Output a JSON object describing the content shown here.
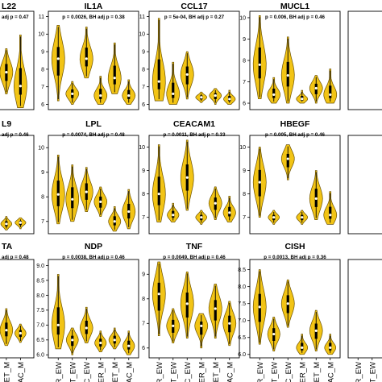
{
  "colors": {
    "violin_fill": "#f2c415",
    "violin_stroke": "#6b5100",
    "box": "#000000",
    "median": "#ffffff",
    "frame": "#000000"
  },
  "x_categories": [
    "BER_EW",
    "BET_EW",
    "AC_EW",
    "BER_M",
    "BET_M",
    "AC_M"
  ],
  "x_tick_labels_visible": [
    "BER_M",
    "BET_M",
    "AC_M",
    "BER_EW",
    "BET_EW",
    "AC_EW",
    "BER_M",
    "BET_M",
    "AC_M",
    "BER_EW",
    "BET_EW",
    "AC_EW",
    "BER_M",
    "BET_M",
    "AC_M",
    "BER_EW",
    "BET_EW",
    "AC_EW",
    "BER_M",
    "BET_M",
    "AC_M",
    "BER_EW",
    "BET_EW",
    "AC_EW",
    "BER_M",
    "BET_M",
    "AC_M"
  ],
  "chart_data": [
    {
      "type": "violin",
      "title": "L22",
      "subtitle": "adj p = 0.47",
      "row": 0,
      "col": 0,
      "yticks": [],
      "ylim": [
        6,
        11
      ],
      "medians": [
        6.8,
        7.9,
        7.2
      ],
      "ranges": [
        [
          6.2,
          8.5
        ],
        [
          6.8,
          9.1
        ],
        [
          6.1,
          9.8
        ]
      ]
    },
    {
      "type": "violin",
      "title": "IL1A",
      "subtitle": "p = 0.0026, BH adj p = 0.38",
      "row": 0,
      "col": 1,
      "yticks": [
        6,
        7,
        8,
        9,
        10,
        11
      ],
      "ylim": [
        5.7,
        11.3
      ],
      "medians": [
        8.6,
        6.6,
        8.6,
        6.5,
        7.5,
        6.5
      ],
      "ranges": [
        [
          6.2,
          10.5
        ],
        [
          6.0,
          7.3
        ],
        [
          7.5,
          10.4
        ],
        [
          6.0,
          7.6
        ],
        [
          6.6,
          9.5
        ],
        [
          6.0,
          7.4
        ]
      ]
    },
    {
      "type": "violin",
      "title": "CCL17",
      "subtitle": "p = 5e-04, BH adj p = 0.27",
      "row": 0,
      "col": 2,
      "yticks": [
        6,
        7,
        8,
        9,
        10,
        11
      ],
      "ylim": [
        5.7,
        11.3
      ],
      "medians": [
        7.3,
        6.6,
        7.7,
        6.4,
        6.5,
        6.3
      ],
      "ranges": [
        [
          6.2,
          10.9
        ],
        [
          6.0,
          8.4
        ],
        [
          6.3,
          9.0
        ],
        [
          6.1,
          6.7
        ],
        [
          6.0,
          6.9
        ],
        [
          6.0,
          6.8
        ]
      ]
    },
    {
      "type": "violin",
      "title": "MUCL1",
      "subtitle": "p = 0.006, BH adj p = 0.46",
      "row": 0,
      "col": 3,
      "yticks": [
        6,
        7,
        8,
        9,
        10
      ],
      "ylim": [
        5.7,
        10.3
      ],
      "medians": [
        7.8,
        6.4,
        7.3,
        6.2,
        6.7,
        6.4
      ],
      "ranges": [
        [
          6.2,
          10.1
        ],
        [
          6.0,
          7.2
        ],
        [
          6.0,
          9.1
        ],
        [
          6.0,
          6.6
        ],
        [
          6.0,
          7.3
        ],
        [
          6.0,
          7.6
        ]
      ]
    },
    {
      "type": "violin",
      "title": "",
      "subtitle": "",
      "row": 0,
      "col": 4,
      "yticks": [],
      "ylim": [
        6,
        11
      ],
      "medians": [],
      "ranges": []
    },
    {
      "type": "violin",
      "title": "L9",
      "subtitle": "adj p = 0.46",
      "row": 1,
      "col": 0,
      "yticks": [],
      "ylim": [
        6.5,
        10.5
      ],
      "medians": [
        6.9,
        6.9,
        6.95
      ],
      "ranges": [
        [
          6.7,
          7.1
        ],
        [
          6.65,
          7.2
        ],
        [
          6.7,
          7.15
        ]
      ]
    },
    {
      "type": "violin",
      "title": "LPL",
      "subtitle": "p = 0.0074, BH adj p = 0.48",
      "row": 1,
      "col": 1,
      "yticks": [
        7,
        8,
        9,
        10
      ],
      "ylim": [
        6.5,
        10.5
      ],
      "medians": [
        8.1,
        7.9,
        8.2,
        7.8,
        7.0,
        7.4
      ],
      "ranges": [
        [
          6.9,
          9.7
        ],
        [
          7.0,
          9.3
        ],
        [
          7.4,
          9.2
        ],
        [
          7.2,
          8.4
        ],
        [
          6.6,
          7.6
        ],
        [
          6.7,
          8.3
        ]
      ]
    },
    {
      "type": "violin",
      "title": "CEACAM1",
      "subtitle": "p = 0.0011, BH adj p = 0.33",
      "row": 1,
      "col": 2,
      "yticks": [
        7,
        8,
        9,
        10
      ],
      "ylim": [
        6.3,
        10.5
      ],
      "medians": [
        8.0,
        7.1,
        8.7,
        7.0,
        7.6,
        7.2
      ],
      "ranges": [
        [
          6.8,
          10.1
        ],
        [
          6.8,
          7.6
        ],
        [
          7.3,
          10.3
        ],
        [
          6.7,
          7.3
        ],
        [
          6.9,
          8.3
        ],
        [
          6.8,
          7.9
        ]
      ]
    },
    {
      "type": "violin",
      "title": "HBEGF",
      "subtitle": "p = 0.005, BH adj p = 0.46",
      "row": 1,
      "col": 3,
      "yticks": [
        7,
        8,
        9,
        10
      ],
      "ylim": [
        6.3,
        10.5
      ],
      "medians": [
        8.5,
        7.0,
        9.5,
        7.0,
        7.8,
        7.1
      ],
      "ranges": [
        [
          7.0,
          10.0
        ],
        [
          6.7,
          7.3
        ],
        [
          8.6,
          10.1
        ],
        [
          6.7,
          7.3
        ],
        [
          6.9,
          9.0
        ],
        [
          6.7,
          8.1
        ]
      ]
    },
    {
      "type": "violin",
      "title": "",
      "subtitle": "",
      "row": 1,
      "col": 4,
      "yticks": [],
      "ylim": [
        6.3,
        10.5
      ],
      "medians": [],
      "ranges": []
    },
    {
      "type": "violin",
      "title": "TA",
      "subtitle": "adj p = 0.48",
      "row": 2,
      "col": 0,
      "yticks": [],
      "ylim": [
        6,
        9.2
      ],
      "medians": [
        6.9,
        6.9,
        6.8
      ],
      "ranges": [
        [
          6.4,
          7.6
        ],
        [
          6.4,
          7.6
        ],
        [
          6.5,
          7.1
        ]
      ]
    },
    {
      "type": "violin",
      "title": "NDP",
      "subtitle": "p = 0.0038, BH adj p = 0.46",
      "row": 2,
      "col": 1,
      "yticks": [
        6.0,
        6.5,
        7.0,
        7.5,
        8.0,
        8.5,
        9.0
      ],
      "ylim": [
        5.9,
        9.2
      ],
      "medians": [
        7.0,
        6.5,
        6.9,
        6.4,
        6.5,
        6.3
      ],
      "ranges": [
        [
          6.2,
          8.7
        ],
        [
          6.0,
          6.9
        ],
        [
          6.4,
          7.6
        ],
        [
          6.1,
          6.8
        ],
        [
          6.2,
          6.9
        ],
        [
          6.0,
          6.8
        ]
      ]
    },
    {
      "type": "violin",
      "title": "TNF",
      "subtitle": "p = 0.0049, BH adj p = 0.46",
      "row": 2,
      "col": 2,
      "yticks": [
        6,
        7,
        8,
        9
      ],
      "ylim": [
        5.6,
        9.6
      ],
      "medians": [
        8.2,
        6.9,
        7.8,
        6.9,
        7.6,
        7.0
      ],
      "ranges": [
        [
          6.5,
          9.5
        ],
        [
          6.2,
          7.6
        ],
        [
          6.4,
          9.1
        ],
        [
          6.0,
          7.4
        ],
        [
          6.4,
          8.6
        ],
        [
          6.1,
          7.9
        ]
      ]
    },
    {
      "type": "violin",
      "title": "CISH",
      "subtitle": "p = 0.0013, BH adj p = 0.36",
      "row": 2,
      "col": 3,
      "yticks": [
        6.0,
        6.5,
        7.0,
        7.5,
        8.0,
        8.5
      ],
      "ylim": [
        5.9,
        8.8
      ],
      "medians": [
        7.4,
        6.6,
        7.5,
        6.2,
        6.7,
        6.2
      ],
      "ranges": [
        [
          6.3,
          8.5
        ],
        [
          6.1,
          7.1
        ],
        [
          6.8,
          8.2
        ],
        [
          6.0,
          6.6
        ],
        [
          6.1,
          7.3
        ],
        [
          6.0,
          6.6
        ]
      ]
    },
    {
      "type": "violin",
      "title": "",
      "subtitle": "",
      "row": 2,
      "col": 4,
      "yticks": [],
      "ylim": [
        5.9,
        8.8
      ],
      "medians": [],
      "ranges": []
    }
  ]
}
